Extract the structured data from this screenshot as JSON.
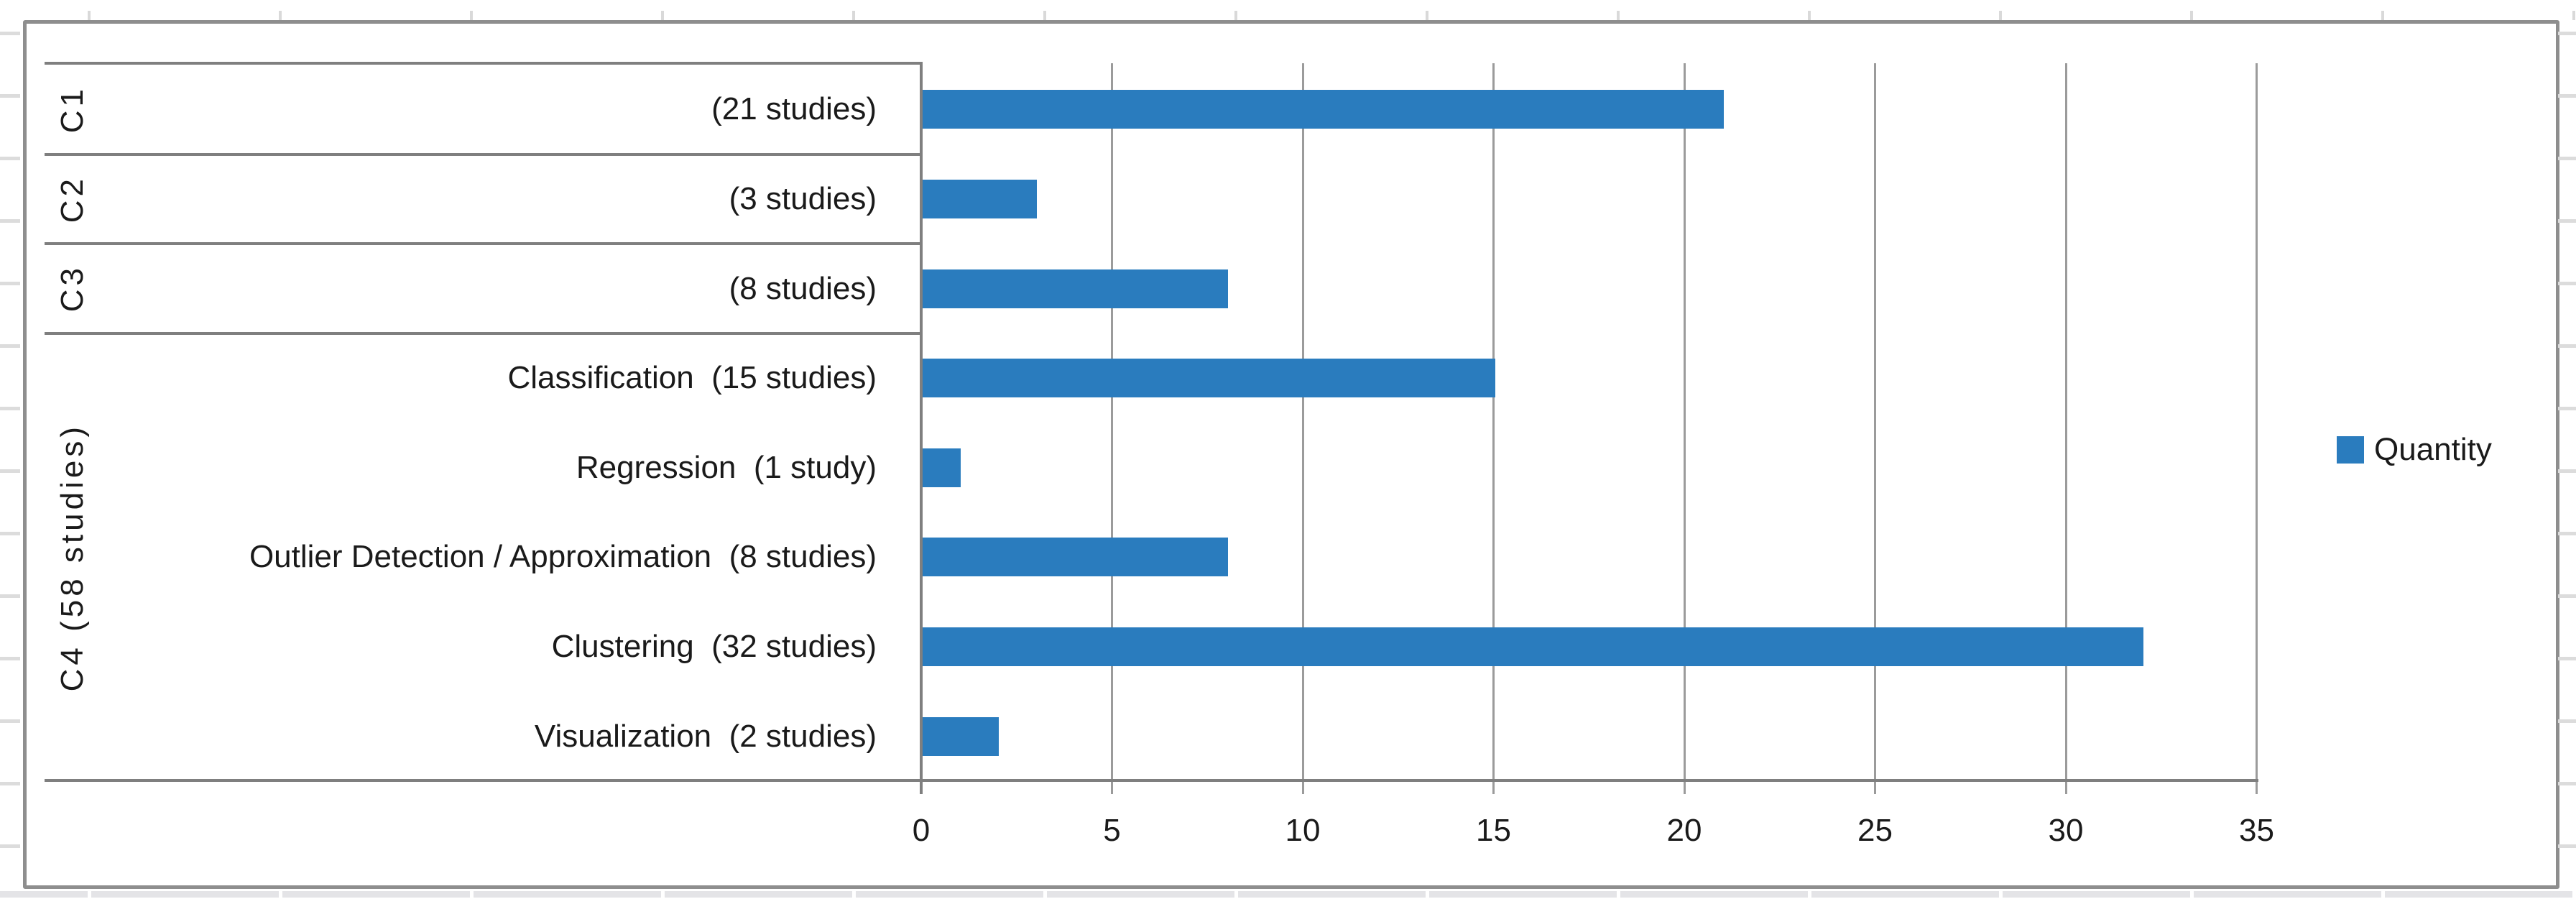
{
  "chart_data": {
    "type": "bar",
    "orientation": "horizontal",
    "title": "",
    "xlabel": "",
    "ylabel": "",
    "xlim": [
      0,
      35
    ],
    "x_ticks": [
      0,
      5,
      10,
      15,
      20,
      25,
      30,
      35
    ],
    "grid": true,
    "legend_position": "right",
    "series": [
      {
        "name": "Quantity",
        "color": "#2a7cbe",
        "values": [
          21,
          3,
          8,
          15,
          1,
          8,
          32,
          2
        ]
      }
    ],
    "rows": [
      {
        "label": "(21 studies)",
        "value": 21,
        "group": "C1"
      },
      {
        "label": "(3 studies)",
        "value": 3,
        "group": "C2"
      },
      {
        "label": "(8 studies)",
        "value": 8,
        "group": "C3"
      },
      {
        "label": "Classification  (15 studies)",
        "value": 15,
        "group": "C4 (58 studies)"
      },
      {
        "label": "Regression  (1 study)",
        "value": 1,
        "group": "C4 (58 studies)"
      },
      {
        "label": "Outlier Detection / Approximation  (8 studies)",
        "value": 8,
        "group": "C4 (58 studies)"
      },
      {
        "label": "Clustering  (32 studies)",
        "value": 32,
        "group": "C4 (58 studies)"
      },
      {
        "label": "Visualization  (2 studies)",
        "value": 2,
        "group": "C4 (58 studies)"
      }
    ],
    "groups": [
      {
        "label": "C1",
        "row_span": [
          0,
          0
        ]
      },
      {
        "label": "C2",
        "row_span": [
          1,
          1
        ]
      },
      {
        "label": "C3",
        "row_span": [
          2,
          2
        ]
      },
      {
        "label": "C4 (58 studies)",
        "row_span": [
          3,
          7
        ]
      }
    ]
  }
}
